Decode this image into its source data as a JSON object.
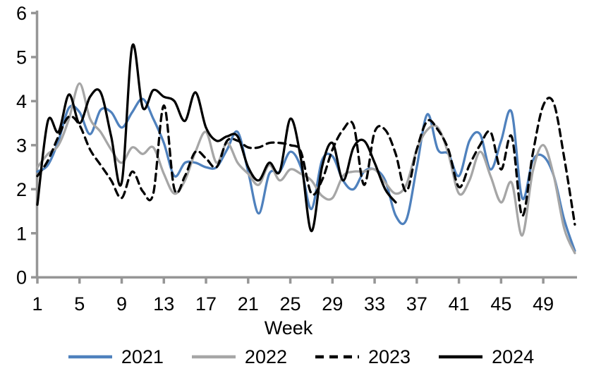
{
  "figure": {
    "background": "#FFFFFF",
    "axis_color": "#969696",
    "text_color": "#000000"
  },
  "chart_data": {
    "type": "line",
    "title": "",
    "xlabel": "Week",
    "ylabel": "",
    "xlim": [
      1,
      52.3
    ],
    "ylim": [
      0,
      6
    ],
    "xticks": [
      1,
      5,
      9,
      13,
      17,
      21,
      25,
      29,
      33,
      37,
      41,
      45,
      49
    ],
    "yticks": [
      0,
      1,
      2,
      3,
      4,
      5,
      6
    ],
    "grid": false,
    "legend_position": "bottom",
    "smoothed_lines": true,
    "x": [
      1,
      2,
      3,
      4,
      5,
      6,
      7,
      8,
      9,
      10,
      11,
      12,
      13,
      14,
      15,
      16,
      17,
      18,
      19,
      20,
      21,
      22,
      23,
      24,
      25,
      26,
      27,
      28,
      29,
      30,
      31,
      32,
      33,
      34,
      35,
      36,
      37,
      38,
      39,
      40,
      41,
      42,
      43,
      44,
      45,
      46,
      47,
      48,
      49,
      50,
      51,
      52
    ],
    "series": [
      {
        "name": "2021",
        "color": "#4F81BD",
        "style": "solid",
        "values": [
          2.4,
          2.55,
          3.1,
          3.85,
          3.75,
          3.25,
          3.8,
          3.75,
          3.4,
          3.75,
          4.05,
          3.6,
          3.05,
          2.3,
          2.6,
          2.6,
          2.5,
          2.5,
          2.9,
          3.3,
          2.4,
          1.45,
          2.35,
          2.4,
          2.85,
          2.5,
          1.55,
          2.65,
          2.75,
          2.2,
          2.0,
          2.4,
          2.45,
          2.2,
          1.4,
          1.3,
          2.5,
          3.7,
          2.9,
          2.8,
          2.3,
          3.1,
          3.25,
          2.45,
          3.1,
          3.75,
          1.8,
          2.65,
          2.75,
          2.3,
          1.3,
          0.6
        ]
      },
      {
        "name": "2022",
        "color": "#A6A6A6",
        "style": "solid",
        "values": [
          2.5,
          2.8,
          3.0,
          3.6,
          4.4,
          3.6,
          3.3,
          2.9,
          2.6,
          2.95,
          2.8,
          2.95,
          2.35,
          1.9,
          2.2,
          2.85,
          3.3,
          2.6,
          3.05,
          2.6,
          2.35,
          2.1,
          2.55,
          2.2,
          2.45,
          2.35,
          2.2,
          1.85,
          1.8,
          2.3,
          2.4,
          2.4,
          2.45,
          2.15,
          1.9,
          2.1,
          2.9,
          3.35,
          3.4,
          2.8,
          1.9,
          2.2,
          2.85,
          2.3,
          1.7,
          2.15,
          0.95,
          2.4,
          3.0,
          2.3,
          1.1,
          0.55
        ]
      },
      {
        "name": "2023",
        "color": "#000000",
        "style": "dashed",
        "values": [
          2.3,
          2.65,
          3.2,
          3.65,
          3.45,
          2.9,
          2.55,
          2.2,
          1.8,
          2.4,
          1.95,
          1.9,
          3.9,
          2.0,
          2.3,
          2.85,
          2.7,
          2.5,
          3.1,
          3.1,
          2.95,
          2.95,
          3.05,
          3.05,
          3.0,
          2.85,
          1.9,
          2.2,
          2.9,
          3.35,
          3.45,
          2.1,
          3.3,
          3.35,
          2.8,
          1.95,
          2.9,
          3.55,
          3.35,
          2.9,
          2.05,
          2.55,
          3.0,
          3.3,
          2.45,
          3.2,
          1.4,
          2.8,
          3.9,
          3.95,
          2.7,
          1.2
        ]
      },
      {
        "name": "2024",
        "color": "#000000",
        "style": "solid",
        "values": [
          1.65,
          3.55,
          3.3,
          4.15,
          3.5,
          4.1,
          4.2,
          3.2,
          2.15,
          5.25,
          3.85,
          4.25,
          4.1,
          4.0,
          3.55,
          4.2,
          3.4,
          3.1,
          3.2,
          3.2,
          2.5,
          2.2,
          2.6,
          2.4,
          3.6,
          2.7,
          1.05,
          2.5,
          3.05,
          2.2,
          2.95,
          3.1,
          2.6,
          2.0,
          1.7
        ]
      }
    ]
  }
}
